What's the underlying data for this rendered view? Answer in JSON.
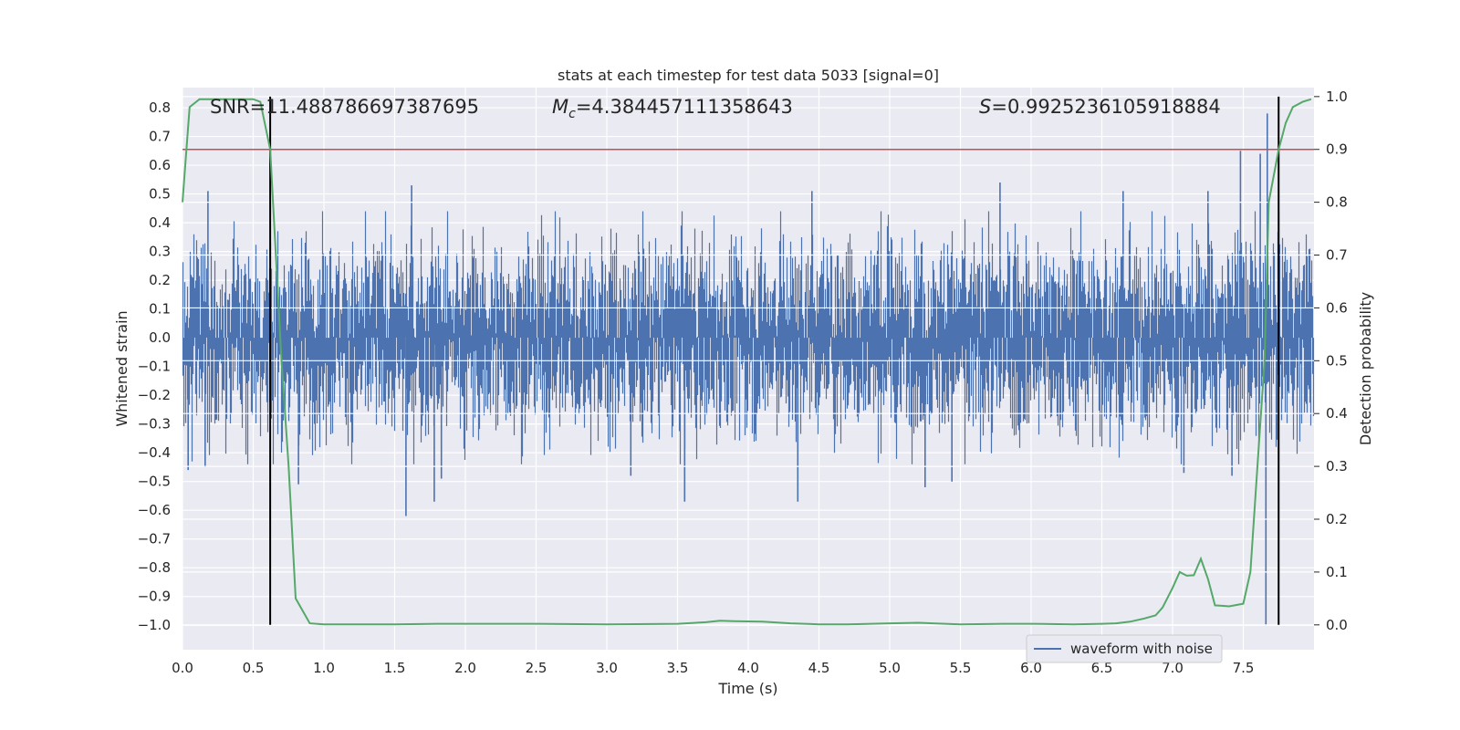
{
  "chart_data": {
    "type": "line",
    "title": "stats at each timestep for test data 5033 [signal=0]",
    "xlabel": "Time (s)",
    "ylabel": "Whitened strain",
    "y2label": "Detection probability",
    "xlim": [
      0.0,
      8.0
    ],
    "ylim": [
      -1.085,
      0.87
    ],
    "y2lim": [
      -0.047,
      1.017
    ],
    "x_ticks": [
      "0.0",
      "0.5",
      "1.0",
      "1.5",
      "2.0",
      "2.5",
      "3.0",
      "3.5",
      "4.0",
      "4.5",
      "5.0",
      "5.5",
      "6.0",
      "6.5",
      "7.0",
      "7.5"
    ],
    "y_ticks": [
      "0.8",
      "0.7",
      "0.6",
      "0.5",
      "0.4",
      "0.3",
      "0.2",
      "0.1",
      "0.0",
      "−0.1",
      "−0.2",
      "−0.3",
      "−0.4",
      "−0.5",
      "−0.6",
      "−0.7",
      "−0.8",
      "−0.9",
      "−1.0"
    ],
    "y2_ticks": [
      "1.0",
      "0.9",
      "0.8",
      "0.7",
      "0.6",
      "0.5",
      "0.4",
      "0.3",
      "0.2",
      "0.1",
      "0.0"
    ],
    "annotations": {
      "snr": "SNR=11.488786697387695",
      "mc_symbol": "M",
      "mc_sub": "c",
      "mc_value": "=4.384457111358643",
      "s_symbol": "S",
      "s_value": "=0.9925236105918884"
    },
    "threshold": {
      "value": 0.9,
      "axis": "right",
      "color": "#c44e52"
    },
    "vertical_lines": [
      0.62,
      7.75
    ],
    "legend": {
      "label": "waveform with noise",
      "placement": "lower-right"
    },
    "series": [
      {
        "name": "waveform with noise",
        "axis": "left",
        "color": "#4c72b0",
        "style": "dense noise, envelope about ±0.3 with spikes to +0.78 near t≈7.67s and −1.0 near t≈7.66s",
        "spikes": [
          {
            "x": 0.18,
            "y": 0.51
          },
          {
            "x": 0.04,
            "y": -0.46
          },
          {
            "x": 0.16,
            "y": -0.45
          },
          {
            "x": 0.82,
            "y": -0.51
          },
          {
            "x": 1.58,
            "y": -0.62
          },
          {
            "x": 1.62,
            "y": 0.53
          },
          {
            "x": 1.78,
            "y": -0.57
          },
          {
            "x": 1.83,
            "y": -0.49
          },
          {
            "x": 3.17,
            "y": -0.48
          },
          {
            "x": 3.55,
            "y": -0.57
          },
          {
            "x": 4.35,
            "y": -0.57
          },
          {
            "x": 4.45,
            "y": 0.51
          },
          {
            "x": 5.25,
            "y": -0.52
          },
          {
            "x": 5.44,
            "y": -0.5
          },
          {
            "x": 5.78,
            "y": 0.54
          },
          {
            "x": 6.65,
            "y": 0.51
          },
          {
            "x": 7.08,
            "y": -0.47
          },
          {
            "x": 7.25,
            "y": 0.51
          },
          {
            "x": 7.42,
            "y": -0.48
          },
          {
            "x": 7.48,
            "y": 0.65
          },
          {
            "x": 7.62,
            "y": 0.64
          },
          {
            "x": 7.66,
            "y": -1.0
          },
          {
            "x": 7.67,
            "y": 0.78
          }
        ]
      },
      {
        "name": "detection probability",
        "axis": "right",
        "color": "#55a868",
        "x": [
          0.0,
          0.05,
          0.12,
          0.2,
          0.3,
          0.4,
          0.5,
          0.55,
          0.62,
          0.7,
          0.75,
          0.8,
          0.9,
          1.0,
          1.2,
          1.5,
          1.8,
          2.0,
          2.5,
          3.0,
          3.5,
          3.7,
          3.8,
          3.9,
          4.1,
          4.3,
          4.5,
          4.7,
          5.0,
          5.2,
          5.5,
          5.8,
          6.0,
          6.3,
          6.5,
          6.6,
          6.7,
          6.8,
          6.88,
          6.93,
          7.0,
          7.05,
          7.1,
          7.15,
          7.2,
          7.25,
          7.3,
          7.35,
          7.4,
          7.5,
          7.55,
          7.6,
          7.65,
          7.68,
          7.75,
          7.8,
          7.85,
          7.92,
          7.98
        ],
        "y": [
          0.8,
          0.98,
          0.995,
          0.995,
          0.995,
          0.995,
          0.995,
          0.99,
          0.9,
          0.5,
          0.3,
          0.05,
          0.003,
          0.001,
          0.001,
          0.001,
          0.002,
          0.002,
          0.002,
          0.001,
          0.002,
          0.005,
          0.008,
          0.007,
          0.006,
          0.003,
          0.001,
          0.001,
          0.003,
          0.004,
          0.001,
          0.002,
          0.002,
          0.001,
          0.002,
          0.003,
          0.006,
          0.012,
          0.018,
          0.033,
          0.07,
          0.1,
          0.093,
          0.094,
          0.125,
          0.087,
          0.037,
          0.036,
          0.035,
          0.04,
          0.1,
          0.3,
          0.5,
          0.8,
          0.9,
          0.95,
          0.98,
          0.99,
          0.995
        ]
      }
    ]
  }
}
